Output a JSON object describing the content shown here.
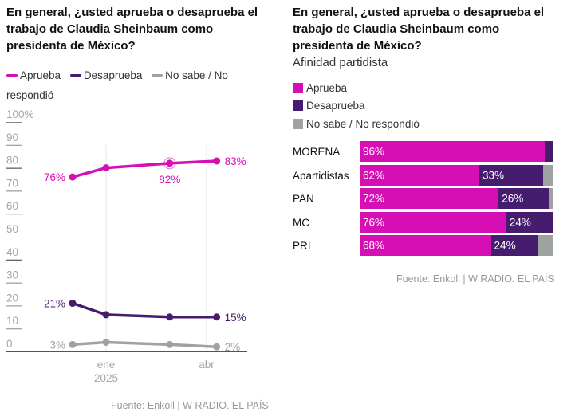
{
  "colors": {
    "aprueba": "#d60fb4",
    "desaprueba": "#461c6e",
    "no_sabe": "#9ea3a1",
    "axis_text": "#a5a5a5",
    "source_text": "#9a9a9a"
  },
  "left": {
    "title_lines": [
      "En general, ¿usted aprueba o desaprueba el",
      "trabajo de Claudia Sheinbaum como",
      "presidenta de México?"
    ],
    "legend": [
      {
        "label": "Aprueba",
        "color_key": "aprueba"
      },
      {
        "label": "Desaprueba",
        "color_key": "desaprueba"
      },
      {
        "label": "No sabe / No",
        "color_key": "no_sabe"
      }
    ],
    "legend_wrap": "respondió",
    "source": "Fuente: Enkoll | W RADIO. EL PAÍS"
  },
  "right": {
    "title_lines": [
      "En general, ¿usted aprueba o desaprueba el",
      "trabajo de Claudia Sheinbaum como",
      "presidenta de México?"
    ],
    "subtitle": "Afinidad partidista",
    "legend": [
      {
        "label": "Aprueba",
        "color_key": "aprueba"
      },
      {
        "label": "Desaprueba",
        "color_key": "desaprueba"
      },
      {
        "label": "No sabe / No respondió",
        "color_key": "no_sabe"
      }
    ],
    "source": "Fuente: Enkoll | W RADIO. EL PAÍS"
  },
  "chart_data": [
    {
      "type": "line",
      "title": "En general, ¿usted aprueba o desaprueba el trabajo de Claudia Sheinbaum como presidenta de México?",
      "x_ticks": [
        {
          "label": "ene",
          "sublabel": "2025",
          "x": 1
        },
        {
          "label": "abr",
          "x": 4
        }
      ],
      "x": [
        0,
        1,
        2.9,
        4.3
      ],
      "ylim": [
        0,
        100
      ],
      "y_ticks": [
        "100%",
        "90",
        "80",
        "70",
        "60",
        "50",
        "40",
        "30",
        "20",
        "10",
        "0"
      ],
      "y_tick_values": [
        100,
        90,
        80,
        70,
        60,
        50,
        40,
        30,
        20,
        10,
        0
      ],
      "grid": "vertical at x ticks",
      "legend_position": "top",
      "series": [
        {
          "name": "Aprueba",
          "color_key": "aprueba",
          "values": [
            76,
            80,
            82,
            83
          ],
          "labels": [
            "76%",
            "",
            "82%",
            "83%"
          ],
          "highlight_index": 2
        },
        {
          "name": "Desaprueba",
          "color_key": "desaprueba",
          "values": [
            21,
            16,
            15,
            15
          ],
          "labels": [
            "21%",
            "",
            "",
            "15%"
          ]
        },
        {
          "name": "No sabe / No respondió",
          "color_key": "no_sabe",
          "values": [
            3,
            4,
            3,
            2
          ],
          "labels": [
            "3%",
            "",
            "",
            "2%"
          ]
        }
      ]
    },
    {
      "type": "bar",
      "orientation": "horizontal-stacked",
      "title": "En general, ¿usted aprueba o desaprueba el trabajo de Claudia Sheinbaum como presidenta de México?",
      "subtitle": "Afinidad partidista",
      "categories": [
        "MORENA",
        "Apartidistas",
        "PAN",
        "MC",
        "PRI"
      ],
      "series": [
        {
          "name": "Aprueba",
          "color_key": "aprueba",
          "values": [
            96,
            62,
            72,
            76,
            68
          ],
          "labels": [
            "96%",
            "62%",
            "72%",
            "76%",
            "68%"
          ]
        },
        {
          "name": "Desaprueba",
          "color_key": "desaprueba",
          "values": [
            4,
            33,
            26,
            24,
            24
          ],
          "labels": [
            "",
            "33%",
            "26%",
            "24%",
            "24%"
          ]
        },
        {
          "name": "No sabe / No respondió",
          "color_key": "no_sabe",
          "values": [
            0,
            5,
            2,
            0,
            8
          ],
          "labels": [
            "",
            "",
            "",
            "",
            ""
          ]
        }
      ],
      "xlim": [
        0,
        100
      ],
      "legend_position": "top-left"
    }
  ]
}
